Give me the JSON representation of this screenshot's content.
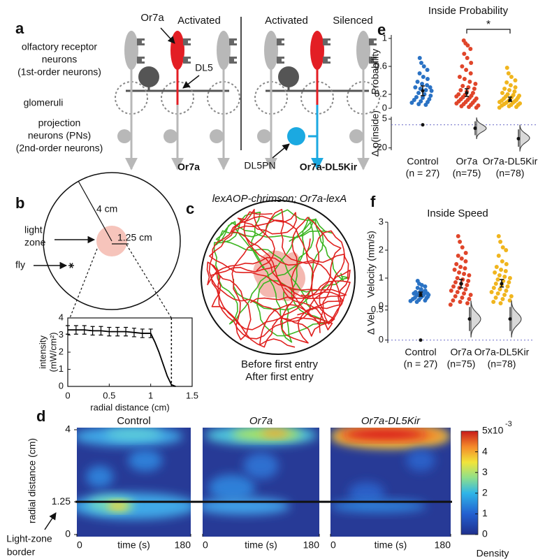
{
  "panel_labels": [
    "a",
    "b",
    "c",
    "d",
    "e",
    "f"
  ],
  "panel_a": {
    "or7a": "Or7a",
    "activated_left": "Activated",
    "activated_right": "Activated",
    "silenced": "Silenced",
    "receptor_lines": [
      "olfactory receptor",
      "neurons",
      "(1st-order neurons)"
    ],
    "dl5": "DL5",
    "glomeruli": "glomeruli",
    "pn_lines": [
      "projection",
      "neurons (PNs)",
      "(2nd-order neurons)"
    ],
    "caption_left": "Or7a",
    "caption_right": "Or7a-DL5Kir",
    "dl5pn": "DL5PN"
  },
  "panel_b": {
    "outer_radius": "4 cm",
    "inner_radius": "1.25 cm",
    "light_zone": [
      "light",
      "zone"
    ],
    "fly": "fly"
  },
  "panel_c": {
    "title": "lexAOP-chrimson; Or7a-lexA",
    "before": "Before first entry",
    "after": "After first entry",
    "before_color": "#3cb521",
    "after_color": "#e0201e"
  },
  "chart_data": [
    {
      "type": "line",
      "xlabel": "radial distance (cm)",
      "ylabel": [
        "intensity",
        "(mW/cm²)"
      ],
      "x": [
        0,
        0.1,
        0.2,
        0.3,
        0.4,
        0.5,
        0.6,
        0.7,
        0.8,
        0.9,
        1.0,
        1.05,
        1.1,
        1.15,
        1.2,
        1.25,
        1.3
      ],
      "values": [
        3.3,
        3.3,
        3.3,
        3.25,
        3.25,
        3.2,
        3.2,
        3.2,
        3.15,
        3.1,
        3.1,
        2.6,
        2.0,
        1.3,
        0.6,
        0.1,
        0
      ],
      "errors": [
        0.25,
        0.25,
        0.25,
        0.25,
        0.25,
        0.25,
        0.25,
        0.25,
        0.25,
        0.25,
        0.25,
        null,
        null,
        null,
        null,
        null,
        null
      ],
      "xlim": [
        0,
        1.5
      ],
      "ylim": [
        0,
        4
      ],
      "xticks": [
        0,
        0.5,
        1,
        1.5
      ],
      "yticks": [
        0,
        1,
        2,
        3,
        4
      ],
      "border_x": 1.25,
      "color": "#000000"
    },
    {
      "type": "strip",
      "title": "Inside Probability",
      "ylabel": "Probability",
      "ylim": [
        0,
        1.05
      ],
      "yticks": [
        0,
        0.2,
        0.6,
        1
      ],
      "groups": [
        {
          "color": "#2a72c4",
          "mean": 0.25,
          "ci": [
            0.18,
            0.32
          ],
          "values": [
            0.72,
            0.65,
            0.6,
            0.55,
            0.5,
            0.45,
            0.42,
            0.38,
            0.35,
            0.33,
            0.3,
            0.28,
            0.26,
            0.25,
            0.22,
            0.2,
            0.18,
            0.16,
            0.15,
            0.13,
            0.12,
            0.1,
            0.09,
            0.08,
            0.06,
            0.05,
            0.3
          ]
        },
        {
          "color": "#e0452a",
          "mean": 0.22,
          "ci": [
            0.17,
            0.28
          ],
          "values": [
            0.97,
            0.93,
            0.9,
            0.85,
            0.78,
            0.72,
            0.65,
            0.6,
            0.55,
            0.5,
            0.45,
            0.42,
            0.38,
            0.35,
            0.32,
            0.3,
            0.28,
            0.26,
            0.24,
            0.22,
            0.2,
            0.19,
            0.18,
            0.17,
            0.16,
            0.15,
            0.14,
            0.13,
            0.12,
            0.11,
            0.1,
            0.09,
            0.08,
            0.07,
            0.06,
            0.05,
            0.04,
            0.03,
            0.02,
            0.01
          ]
        },
        {
          "color": "#f0b51e",
          "mean": 0.12,
          "ci": [
            0.1,
            0.16
          ],
          "values": [
            0.58,
            0.5,
            0.45,
            0.4,
            0.37,
            0.33,
            0.3,
            0.28,
            0.26,
            0.24,
            0.22,
            0.2,
            0.19,
            0.18,
            0.17,
            0.16,
            0.15,
            0.14,
            0.13,
            0.12,
            0.11,
            0.1,
            0.1,
            0.09,
            0.08,
            0.08,
            0.07,
            0.06,
            0.05,
            0.05,
            0.04,
            0.03,
            0.02,
            0.01
          ]
        }
      ],
      "significance": {
        "groups": [
          1,
          2
        ],
        "label": "*"
      }
    },
    {
      "type": "delta",
      "ylabel": "Δ p(inside)",
      "ylim": [
        -22,
        7
      ],
      "yticks": [
        -20,
        5
      ],
      "categories": [
        "Control",
        "Or7a",
        "Or7a-DL5Kir"
      ],
      "n_labels": [
        "(n = 27)",
        "(n=75)",
        "(n=78)"
      ],
      "values": [
        0,
        -3,
        -12
      ],
      "ci": [
        [
          0,
          0
        ],
        [
          -9,
          3
        ],
        [
          -19,
          -4
        ]
      ]
    },
    {
      "type": "strip",
      "title": "Inside Speed",
      "ylabel": "Velocity (mm/s)",
      "ylim": [
        0,
        3
      ],
      "yticks": [
        0,
        1,
        2,
        3
      ],
      "groups": [
        {
          "color": "#2a72c4",
          "mean": 0.42,
          "ci": [
            0.35,
            0.5
          ],
          "values": [
            0.9,
            0.8,
            0.75,
            0.7,
            0.65,
            0.6,
            0.55,
            0.5,
            0.5,
            0.48,
            0.45,
            0.42,
            0.4,
            0.4,
            0.38,
            0.35,
            0.33,
            0.3,
            0.3,
            0.28,
            0.25,
            0.22,
            0.2,
            0.18,
            0.15,
            0.5,
            0.45
          ]
        },
        {
          "color": "#e0452a",
          "mean": 0.8,
          "ci": [
            0.65,
            0.95
          ],
          "values": [
            2.5,
            2.3,
            2.1,
            1.9,
            1.8,
            1.7,
            1.6,
            1.5,
            1.4,
            1.35,
            1.3,
            1.2,
            1.15,
            1.1,
            1.0,
            0.95,
            0.9,
            0.85,
            0.8,
            0.75,
            0.7,
            0.65,
            0.6,
            0.55,
            0.5,
            0.45,
            0.4,
            0.35,
            0.3,
            0.25,
            0.2,
            0.15,
            0.1,
            0.05
          ]
        },
        {
          "color": "#f0b51e",
          "mean": 0.8,
          "ci": [
            0.68,
            0.95
          ],
          "values": [
            2.5,
            2.3,
            2.1,
            2.0,
            1.8,
            1.6,
            1.5,
            1.4,
            1.3,
            1.25,
            1.2,
            1.1,
            1.05,
            1.0,
            0.95,
            0.9,
            0.85,
            0.8,
            0.75,
            0.7,
            0.65,
            0.6,
            0.55,
            0.5,
            0.45,
            0.4,
            0.35,
            0.3,
            0.25,
            0.2,
            0.15,
            0.1
          ]
        }
      ]
    },
    {
      "type": "delta",
      "ylabel": "Δ Vel",
      "ylim": [
        -0.05,
        0.6
      ],
      "yticks": [
        0,
        0.5
      ],
      "categories": [
        "Control",
        "Or7a",
        "Or7a-DL5Kir"
      ],
      "n_labels": [
        "(n = 27)",
        "(n=75)",
        "(n=78)"
      ],
      "values": [
        0,
        0.35,
        0.35
      ],
      "ci": [
        [
          0,
          0
        ],
        [
          0.15,
          0.55
        ],
        [
          0.15,
          0.55
        ]
      ]
    },
    {
      "type": "heatmap",
      "titles": [
        "Control",
        "Or7a",
        "Or7a-DL5Kir"
      ],
      "ylabel": "radial distance (cm)",
      "ylim": [
        0,
        4
      ],
      "yticks": [
        0,
        1.25,
        4
      ],
      "xlim": [
        0,
        180
      ],
      "xticks": [
        0,
        180
      ],
      "xlabel": "time (s)",
      "border_y": 1.25,
      "border_label": [
        "Light-zone",
        "border"
      ],
      "colorbar": {
        "lim": [
          0,
          5
        ],
        "ticks": [
          0,
          1,
          2,
          3,
          4,
          {
            "value": 5,
            "label": "5x10"
          }
        ],
        "exponent": "-3",
        "label": "Density"
      }
    }
  ]
}
